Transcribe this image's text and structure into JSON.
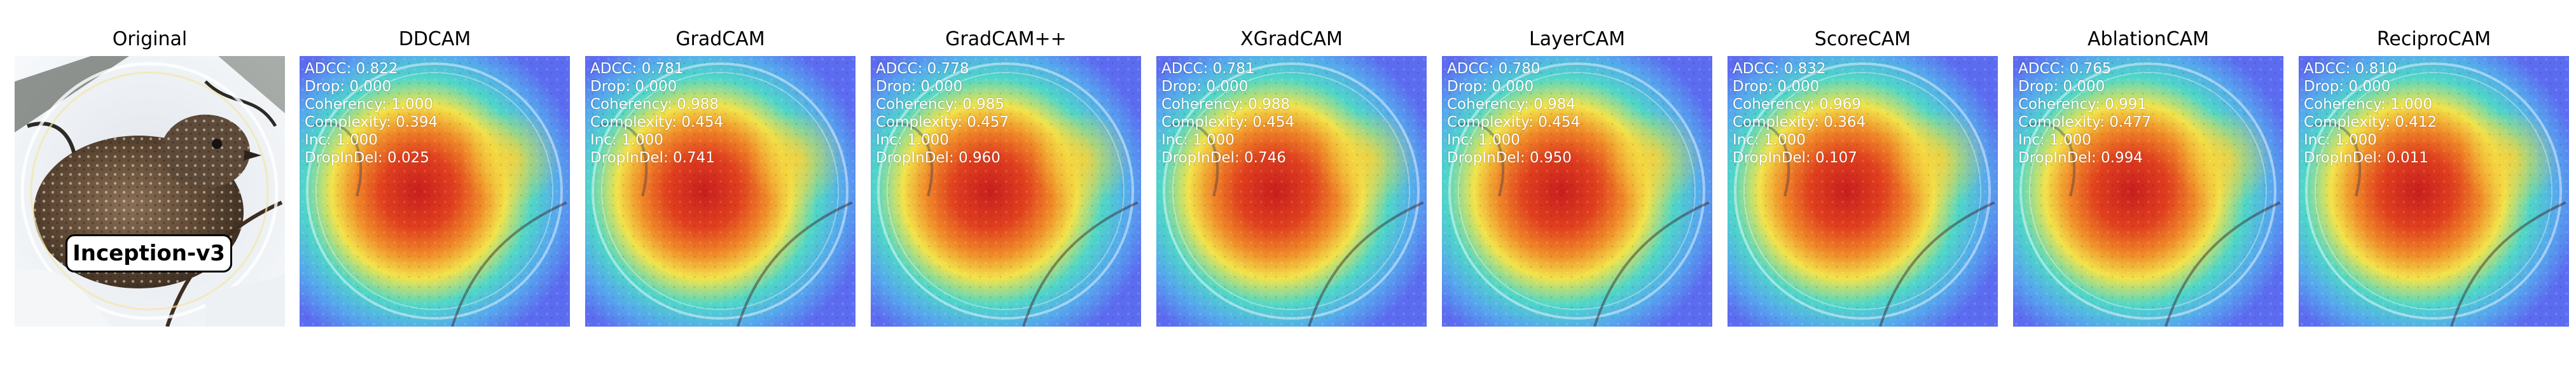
{
  "figure": {
    "model_name": "Inception-v3",
    "original_title": "Original",
    "metric_labels": [
      "ADCC",
      "Drop",
      "Coherency",
      "Complexity",
      "Inc",
      "DropInDel"
    ],
    "methods": [
      {
        "name": "DDCAM",
        "metrics": [
          "ADCC: 0.822",
          "Drop: 0.000",
          "Coherency: 1.000",
          "Complexity: 0.394",
          "Inc: 1.000",
          "DropInDel: 0.025"
        ]
      },
      {
        "name": "GradCAM",
        "metrics": [
          "ADCC: 0.781",
          "Drop: 0.000",
          "Coherency: 0.988",
          "Complexity: 0.454",
          "Inc: 1.000",
          "DropInDel: 0.741"
        ]
      },
      {
        "name": "GradCAM++",
        "metrics": [
          "ADCC: 0.778",
          "Drop: 0.000",
          "Coherency: 0.985",
          "Complexity: 0.457",
          "Inc: 1.000",
          "DropInDel: 0.960"
        ]
      },
      {
        "name": "XGradCAM",
        "metrics": [
          "ADCC: 0.781",
          "Drop: 0.000",
          "Coherency: 0.988",
          "Complexity: 0.454",
          "Inc: 1.000",
          "DropInDel: 0.746"
        ]
      },
      {
        "name": "LayerCAM",
        "metrics": [
          "ADCC: 0.780",
          "Drop: 0.000",
          "Coherency: 0.984",
          "Complexity: 0.454",
          "Inc: 1.000",
          "DropInDel: 0.950"
        ]
      },
      {
        "name": "ScoreCAM",
        "metrics": [
          "ADCC: 0.832",
          "Drop: 0.000",
          "Coherency: 0.969",
          "Complexity: 0.364",
          "Inc: 1.000",
          "DropInDel: 0.107"
        ]
      },
      {
        "name": "AblationCAM",
        "metrics": [
          "ADCC: 0.765",
          "Drop: 0.000",
          "Coherency: 0.991",
          "Complexity: 0.477",
          "Inc: 1.000",
          "DropInDel: 0.994"
        ]
      },
      {
        "name": "ReciproCAM",
        "metrics": [
          "ADCC: 0.810",
          "Drop: 0.000",
          "Coherency: 1.000",
          "Complexity: 0.412",
          "Inc: 1.000",
          "DropInDel: 0.011"
        ]
      }
    ]
  },
  "colors": {
    "heatmap_low": "#5c6cf0",
    "heatmap_mid": "#4fd6c8",
    "heatmap_warm": "#f2e34a",
    "heatmap_high": "#c81e1e",
    "badge_border": "#000000",
    "text": "#000000",
    "metric_text": "#ffffff"
  },
  "icons": {
    "bird_photo": "bird-photo",
    "saliency_overlay": "heatmap-overlay"
  }
}
